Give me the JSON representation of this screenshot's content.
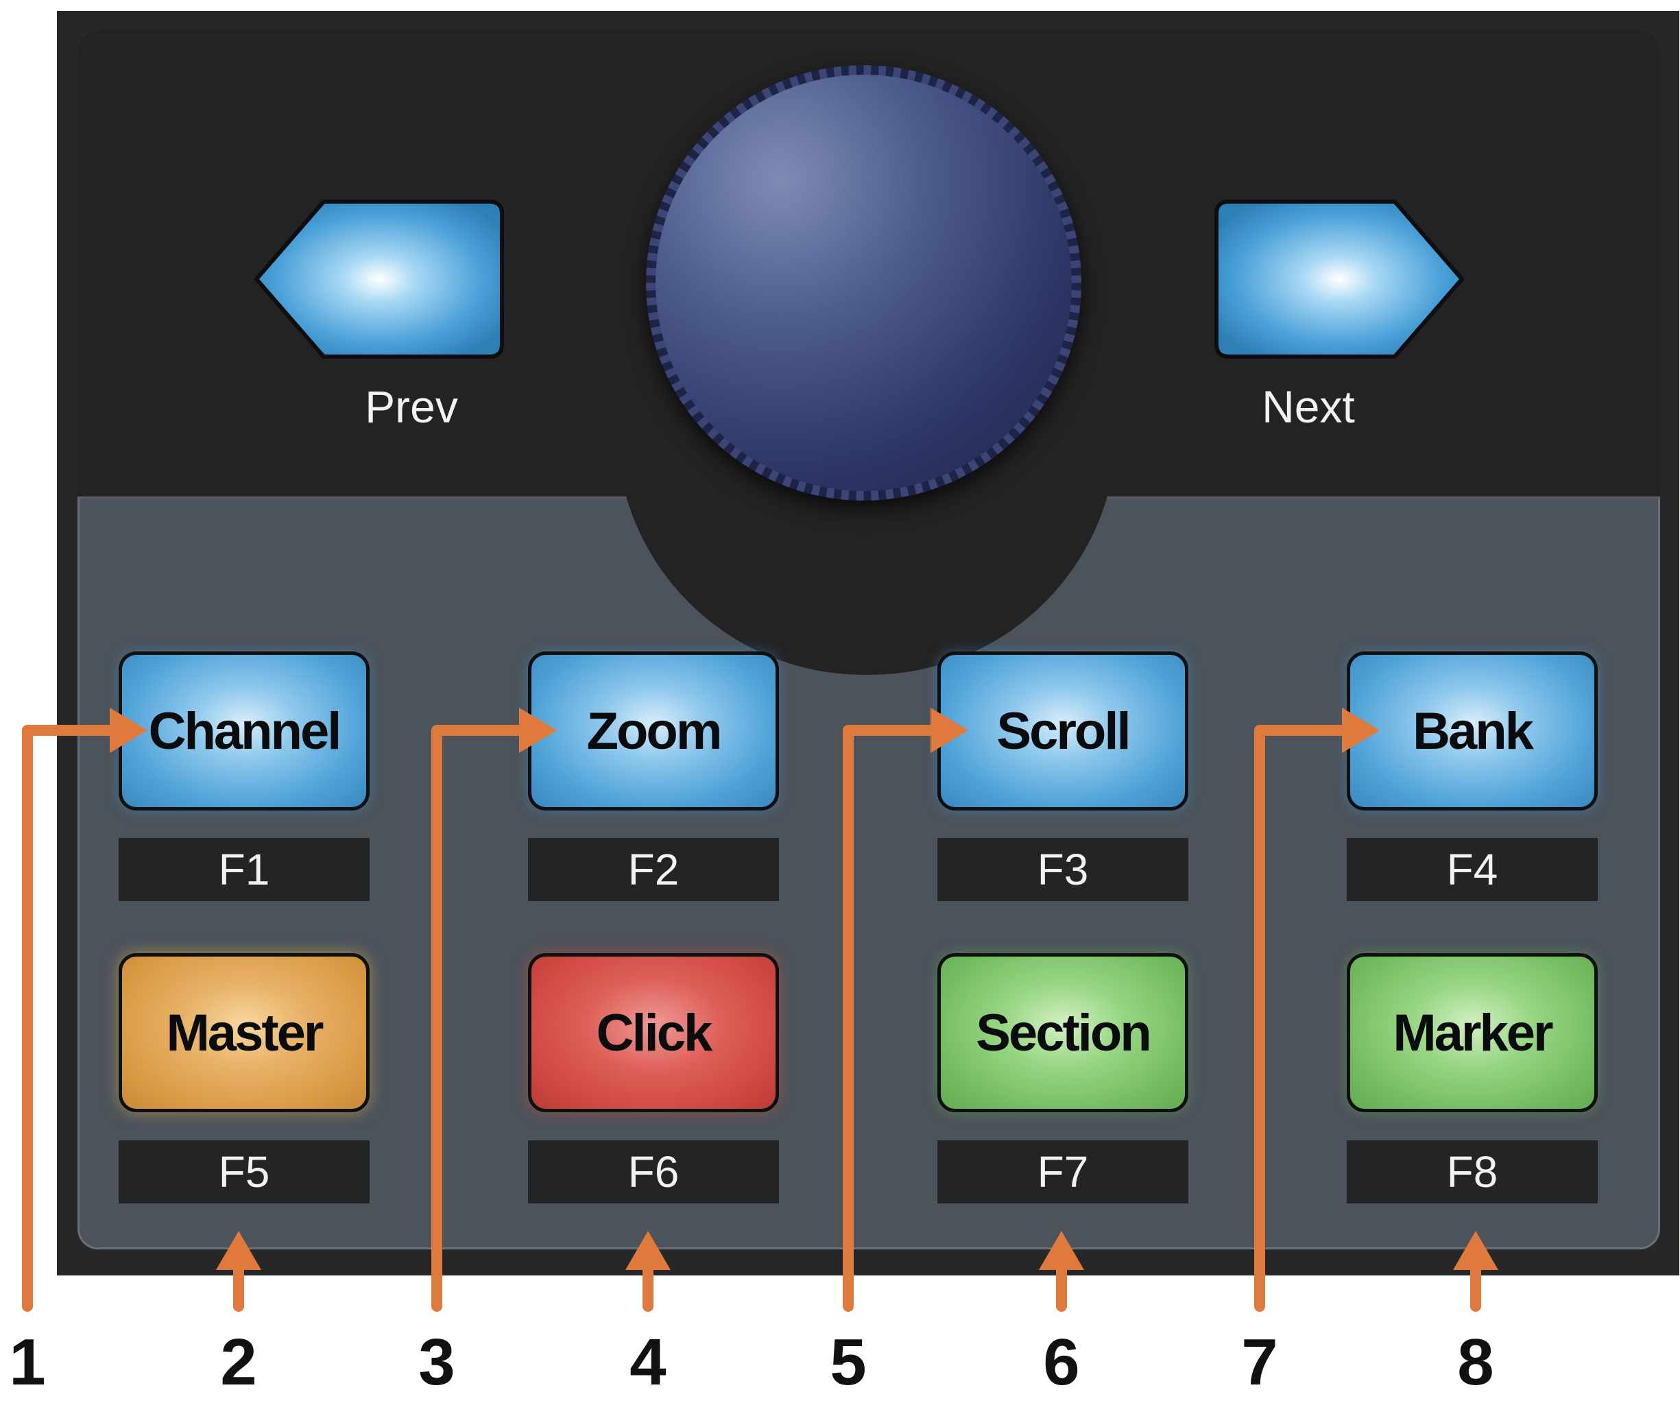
{
  "nav": {
    "prev_label": "Prev",
    "next_label": "Next"
  },
  "buttons": [
    {
      "label": "Channel",
      "fkey": "F1",
      "color": "#4ea2d8"
    },
    {
      "label": "Zoom",
      "fkey": "F2",
      "color": "#4ea2d8"
    },
    {
      "label": "Scroll",
      "fkey": "F3",
      "color": "#4ea2d8"
    },
    {
      "label": "Bank",
      "fkey": "F4",
      "color": "#4ea2d8"
    },
    {
      "label": "Master",
      "fkey": "F5",
      "color": "#e0a650"
    },
    {
      "label": "Click",
      "fkey": "F6",
      "color": "#d9534f"
    },
    {
      "label": "Section",
      "fkey": "F7",
      "color": "#78c064"
    },
    {
      "label": "Marker",
      "fkey": "F8",
      "color": "#78c064"
    }
  ],
  "callouts": [
    "1",
    "2",
    "3",
    "4",
    "5",
    "6",
    "7",
    "8"
  ],
  "colors": {
    "callout": "#e07a3c",
    "panel": "#262728",
    "panel_inner": "#4c535b"
  }
}
